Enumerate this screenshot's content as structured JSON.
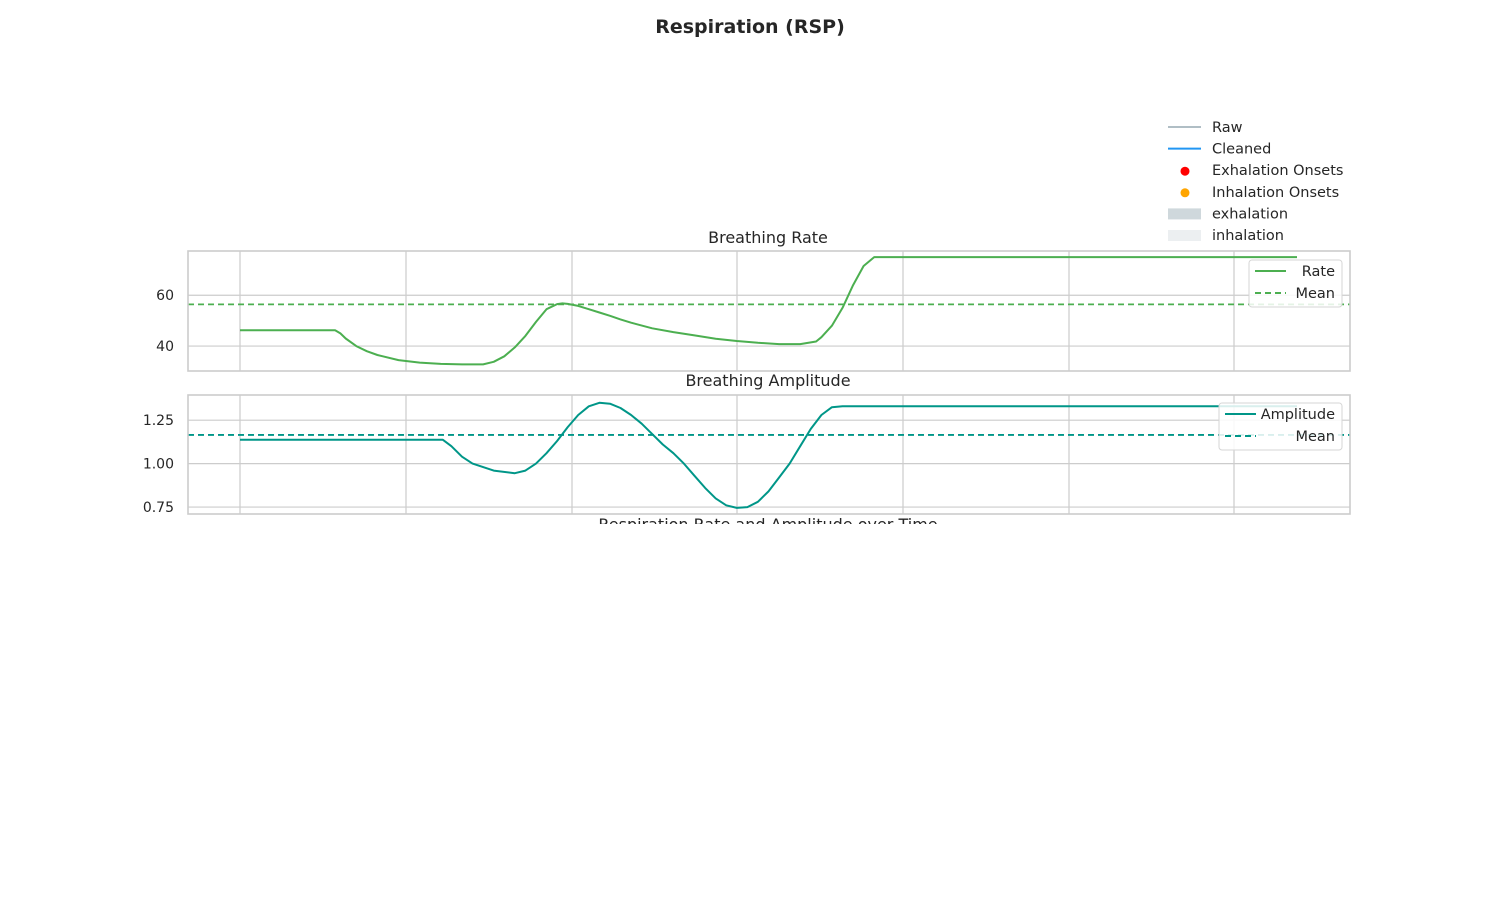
{
  "figure": {
    "title": "Respiration (RSP)",
    "cut_xlabel": "Respiration Rate and Amplitude over Time"
  },
  "top_legend": {
    "entries": [
      {
        "label": "Raw",
        "kind": "line",
        "color": "#b0bec5"
      },
      {
        "label": "Cleaned",
        "kind": "line",
        "color": "#2196f3"
      },
      {
        "label": "Exhalation Onsets",
        "kind": "dot",
        "color": "#ff0000"
      },
      {
        "label": "Inhalation Onsets",
        "kind": "dot",
        "color": "#ffa500"
      },
      {
        "label": "exhalation",
        "kind": "patch",
        "color": "#cfd8dc"
      },
      {
        "label": "inhalation",
        "kind": "patch",
        "color": "#eceff1"
      }
    ]
  },
  "chart_data": [
    {
      "type": "line",
      "title": "Breathing Rate",
      "ylim": [
        30.2,
        77.4
      ],
      "yticks": [
        40,
        60
      ],
      "grid": true,
      "legend_position": "upper right",
      "series": [
        {
          "name": "Rate",
          "color": "#4caf50",
          "style": "solid",
          "x": [
            0,
            0.045,
            0.09,
            0.095,
            0.1,
            0.11,
            0.12,
            0.13,
            0.15,
            0.17,
            0.19,
            0.21,
            0.23,
            0.24,
            0.25,
            0.26,
            0.27,
            0.28,
            0.29,
            0.3,
            0.305,
            0.31,
            0.32,
            0.33,
            0.34,
            0.35,
            0.36,
            0.37,
            0.39,
            0.41,
            0.43,
            0.45,
            0.47,
            0.49,
            0.51,
            0.53,
            0.545,
            0.55,
            0.56,
            0.57,
            0.58,
            0.59,
            0.6,
            0.61,
            0.615,
            0.62,
            0.65,
            0.7,
            0.75,
            0.8,
            0.85,
            0.9,
            0.95,
            1.0
          ],
          "values": [
            46.2,
            46.2,
            46.2,
            45.0,
            43.0,
            40.0,
            38.0,
            36.5,
            34.5,
            33.5,
            33.0,
            32.8,
            32.8,
            33.8,
            36.0,
            39.5,
            44.0,
            49.5,
            54.5,
            56.5,
            56.8,
            56.6,
            55.8,
            54.5,
            53.2,
            51.9,
            50.5,
            49.2,
            47.0,
            45.5,
            44.2,
            42.9,
            42.0,
            41.3,
            40.8,
            40.8,
            41.8,
            43.5,
            48.0,
            55.0,
            64.0,
            71.5,
            75.0,
            75.0,
            75.0,
            75.0,
            75.0,
            75.0,
            75.0,
            75.0,
            75.0,
            75.0,
            75.0,
            75.0
          ]
        },
        {
          "name": "Mean",
          "color": "#4caf50",
          "style": "dashed",
          "hline": 56.4
        }
      ]
    },
    {
      "type": "line",
      "title": "Breathing Amplitude",
      "ylim": [
        0.71,
        1.395
      ],
      "yticks": [
        "0.75",
        "1.00",
        "1.25"
      ],
      "grid": true,
      "legend_position": "upper right",
      "series": [
        {
          "name": "Amplitude",
          "color": "#009688",
          "style": "solid",
          "x": [
            0,
            0.06,
            0.12,
            0.18,
            0.192,
            0.2,
            0.21,
            0.22,
            0.24,
            0.26,
            0.27,
            0.28,
            0.29,
            0.3,
            0.31,
            0.32,
            0.33,
            0.34,
            0.35,
            0.36,
            0.37,
            0.38,
            0.39,
            0.4,
            0.41,
            0.42,
            0.43,
            0.44,
            0.45,
            0.46,
            0.47,
            0.48,
            0.49,
            0.5,
            0.51,
            0.52,
            0.53,
            0.54,
            0.55,
            0.56,
            0.57,
            0.58,
            0.59,
            0.6,
            0.61,
            0.62,
            0.625,
            0.65,
            0.7,
            0.75,
            0.8,
            0.85,
            0.9,
            0.95,
            1.0
          ],
          "values": [
            1.137,
            1.137,
            1.137,
            1.137,
            1.137,
            1.1,
            1.04,
            1.0,
            0.96,
            0.945,
            0.96,
            1.0,
            1.06,
            1.13,
            1.21,
            1.28,
            1.33,
            1.35,
            1.345,
            1.32,
            1.28,
            1.23,
            1.17,
            1.11,
            1.06,
            1.0,
            0.93,
            0.86,
            0.8,
            0.76,
            0.745,
            0.75,
            0.78,
            0.84,
            0.92,
            1.0,
            1.1,
            1.2,
            1.28,
            1.325,
            1.33,
            1.33,
            1.33,
            1.33,
            1.33,
            1.33,
            1.33,
            1.33,
            1.33,
            1.33,
            1.33,
            1.33,
            1.33,
            1.33,
            1.33
          ]
        },
        {
          "name": "Mean",
          "color": "#009688",
          "style": "dashed",
          "hline": 1.165
        }
      ]
    }
  ]
}
